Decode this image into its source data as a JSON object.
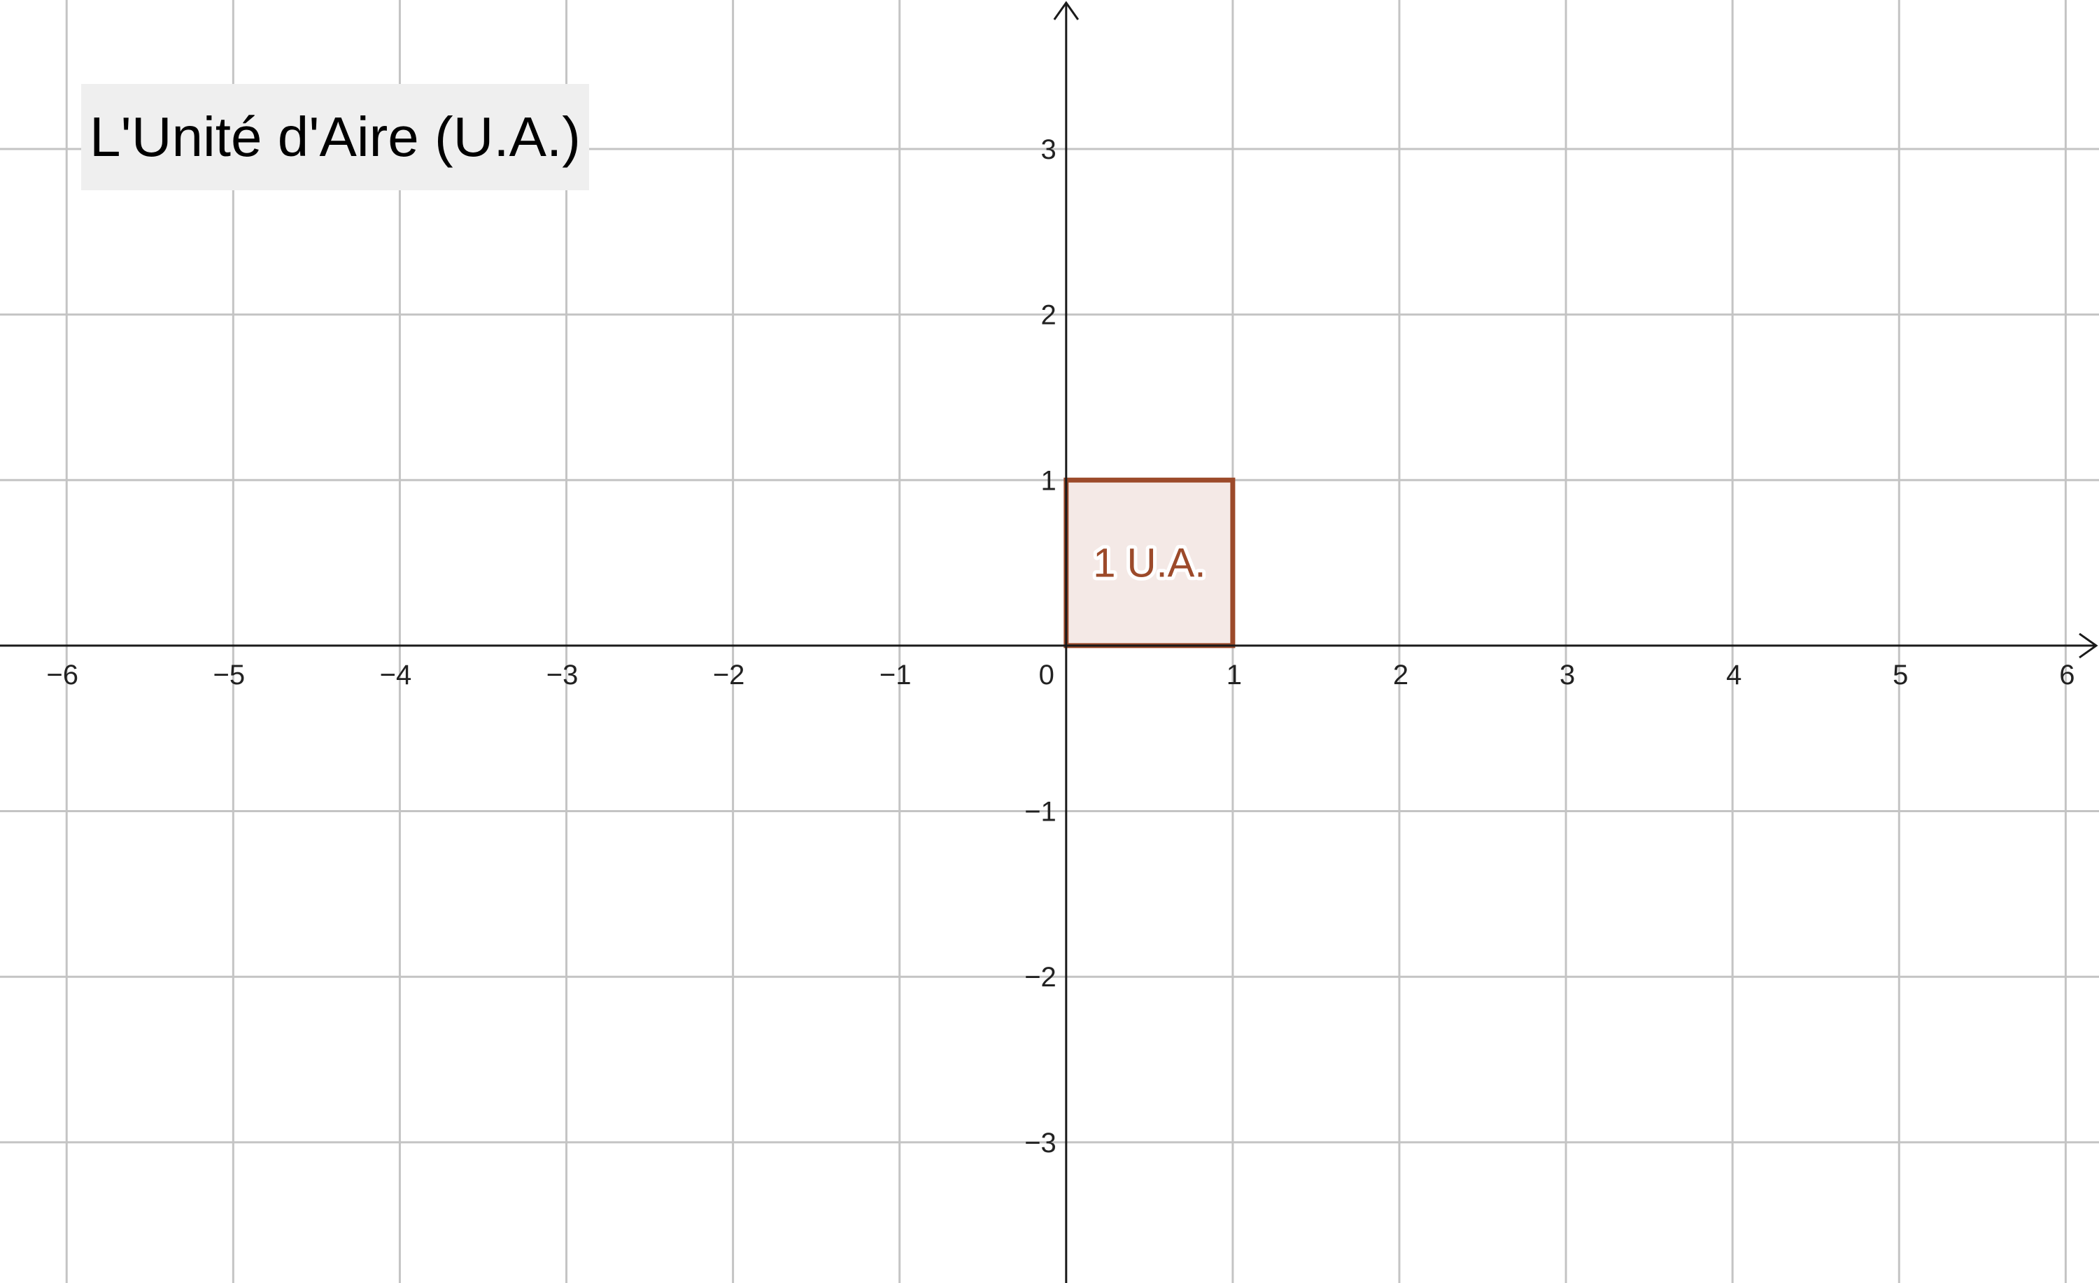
{
  "title": "L'Unité d'Aire (U.A.)",
  "chart_data": {
    "type": "cartesian-plane",
    "xlim": [
      -6.4,
      6.2
    ],
    "ylim": [
      -3.85,
      3.9
    ],
    "x_ticks": [
      -6,
      -5,
      -4,
      -3,
      -2,
      -1,
      1,
      2,
      3,
      4,
      5,
      6
    ],
    "x_tick_labels": [
      "−6",
      "−5",
      "−4",
      "−3",
      "−2",
      "−1",
      "1",
      "2",
      "3",
      "4",
      "5",
      "6"
    ],
    "y_ticks": [
      -3,
      -2,
      -1,
      1,
      2,
      3
    ],
    "y_tick_labels": [
      "−3",
      "−2",
      "−1",
      "1",
      "2",
      "3"
    ],
    "origin_label": "0",
    "grid": true,
    "shapes": [
      {
        "kind": "polygon",
        "points": [
          [
            0,
            0
          ],
          [
            1,
            0
          ],
          [
            1,
            1
          ],
          [
            0,
            1
          ]
        ],
        "label": "1 U.A.",
        "label_at": [
          0.5,
          0.5
        ],
        "stroke": "#9c4a2a",
        "fill": "#f4e9e6"
      }
    ]
  }
}
